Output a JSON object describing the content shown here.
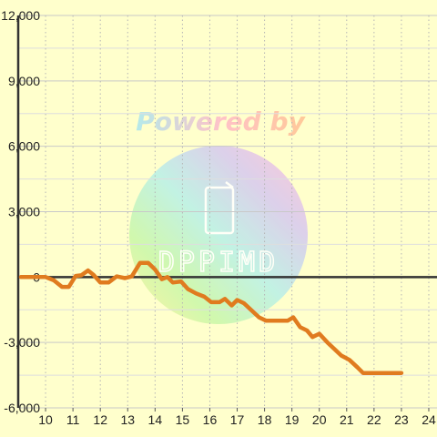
{
  "chart_data": {
    "type": "line",
    "title": "",
    "xlabel": "",
    "ylabel": "",
    "xlim": [
      9,
      24.3
    ],
    "ylim": [
      -6000,
      12000
    ],
    "x_ticks": [
      10,
      11,
      12,
      13,
      14,
      15,
      16,
      17,
      18,
      19,
      20,
      21,
      22,
      23,
      24
    ],
    "y_ticks": [
      -6000,
      -3000,
      0,
      3000,
      6000,
      9000,
      12000
    ],
    "x_tick_labels": [
      "10",
      "11",
      "12",
      "13",
      "14",
      "15",
      "16",
      "17",
      "18",
      "19",
      "20",
      "21",
      "22",
      "23",
      "24"
    ],
    "y_tick_labels": [
      "-6,000",
      "-3,000",
      "0",
      "3,000",
      "6,000",
      "9,000",
      "12,000"
    ],
    "grid": true,
    "series": [
      {
        "color": "#e07b1f",
        "points": [
          [
            9.1,
            0
          ],
          [
            10.0,
            0
          ],
          [
            10.3,
            -150
          ],
          [
            10.6,
            -450
          ],
          [
            10.85,
            -450
          ],
          [
            11.1,
            50
          ],
          [
            11.3,
            80
          ],
          [
            11.55,
            300
          ],
          [
            11.75,
            100
          ],
          [
            12.0,
            -250
          ],
          [
            12.3,
            -250
          ],
          [
            12.6,
            30
          ],
          [
            12.9,
            -50
          ],
          [
            13.15,
            30
          ],
          [
            13.45,
            650
          ],
          [
            13.75,
            650
          ],
          [
            14.0,
            350
          ],
          [
            14.25,
            -100
          ],
          [
            14.45,
            0
          ],
          [
            14.65,
            -250
          ],
          [
            14.95,
            -200
          ],
          [
            15.2,
            -550
          ],
          [
            15.5,
            -750
          ],
          [
            15.8,
            -900
          ],
          [
            16.05,
            -1150
          ],
          [
            16.35,
            -1150
          ],
          [
            16.55,
            -1000
          ],
          [
            16.8,
            -1300
          ],
          [
            17.0,
            -1050
          ],
          [
            17.25,
            -1200
          ],
          [
            17.5,
            -1500
          ],
          [
            17.8,
            -1850
          ],
          [
            18.05,
            -2000
          ],
          [
            18.35,
            -2000
          ],
          [
            18.65,
            -2000
          ],
          [
            18.85,
            -2000
          ],
          [
            19.05,
            -1850
          ],
          [
            19.3,
            -2300
          ],
          [
            19.55,
            -2450
          ],
          [
            19.75,
            -2750
          ],
          [
            20.0,
            -2600
          ],
          [
            20.3,
            -3000
          ],
          [
            20.55,
            -3300
          ],
          [
            20.8,
            -3600
          ],
          [
            21.1,
            -3800
          ],
          [
            21.4,
            -4150
          ],
          [
            21.6,
            -4400
          ],
          [
            22.0,
            -4400
          ],
          [
            22.5,
            -4400
          ],
          [
            23.0,
            -4400
          ]
        ]
      }
    ],
    "watermark": {
      "text": "Powered by",
      "brand": "DPPIMD"
    }
  }
}
